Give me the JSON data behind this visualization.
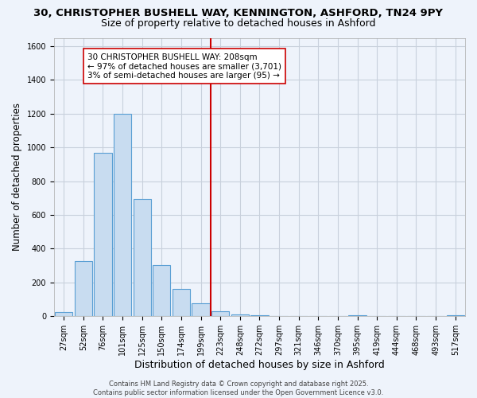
{
  "title1": "30, CHRISTOPHER BUSHELL WAY, KENNINGTON, ASHFORD, TN24 9PY",
  "title2": "Size of property relative to detached houses in Ashford",
  "xlabel": "Distribution of detached houses by size in Ashford",
  "ylabel": "Number of detached properties",
  "bar_labels": [
    "27sqm",
    "52sqm",
    "76sqm",
    "101sqm",
    "125sqm",
    "150sqm",
    "174sqm",
    "199sqm",
    "223sqm",
    "248sqm",
    "272sqm",
    "297sqm",
    "321sqm",
    "346sqm",
    "370sqm",
    "395sqm",
    "419sqm",
    "444sqm",
    "468sqm",
    "493sqm",
    "517sqm"
  ],
  "bar_values": [
    25,
    325,
    970,
    1200,
    695,
    305,
    160,
    75,
    30,
    10,
    5,
    2,
    1,
    0,
    0,
    8,
    0,
    0,
    0,
    0,
    8
  ],
  "bar_color": "#c8dcf0",
  "bar_edgecolor": "#5a9fd4",
  "background_color": "#eef3fb",
  "grid_color": "#c8d0dc",
  "vline_color": "#cc0000",
  "vline_pos": 7.5,
  "annotation_title": "30 CHRISTOPHER BUSHELL WAY: 208sqm",
  "annotation_line1": "← 97% of detached houses are smaller (3,701)",
  "annotation_line2": "3% of semi-detached houses are larger (95) →",
  "ylim": [
    0,
    1650
  ],
  "yticks": [
    0,
    200,
    400,
    600,
    800,
    1000,
    1200,
    1400,
    1600
  ],
  "footer1": "Contains HM Land Registry data © Crown copyright and database right 2025.",
  "footer2": "Contains public sector information licensed under the Open Government Licence v3.0.",
  "title1_fontsize": 9.5,
  "title2_fontsize": 9,
  "tick_fontsize": 7,
  "ylabel_fontsize": 8.5,
  "xlabel_fontsize": 9,
  "ann_fontsize": 7.5,
  "footer_fontsize": 6
}
